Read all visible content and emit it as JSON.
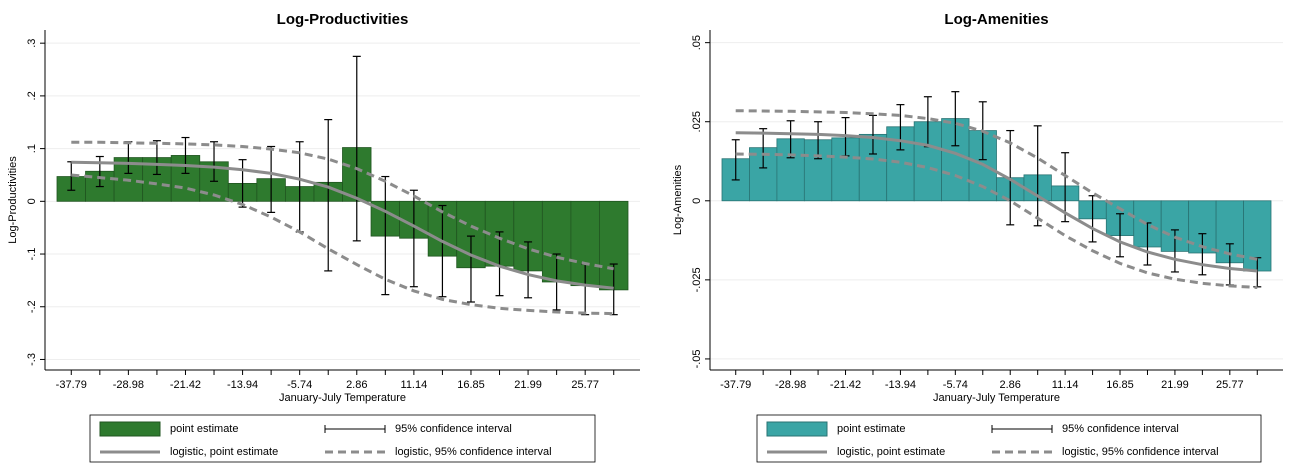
{
  "chart_data": [
    {
      "type": "bar",
      "title": "Log-Productivities",
      "y_label": "Log-Productivities",
      "x_label": "January-July Temperature",
      "categories": [
        "-37.79",
        null,
        "-28.98",
        null,
        "-21.42",
        null,
        "-13.94",
        null,
        "-5.74",
        null,
        "2.86",
        null,
        "11.14",
        null,
        "16.85",
        null,
        "21.99",
        null,
        "25.77",
        null
      ],
      "ylim": [
        -0.32,
        0.325
      ],
      "yticks": [
        {
          "value": -0.3,
          "label": "-.3"
        },
        {
          "value": -0.2,
          "label": "-.2"
        },
        {
          "value": -0.1,
          "label": "-.1"
        },
        0,
        {
          "value": 0.1,
          "label": ".1"
        },
        {
          "value": 0.2,
          "label": ".2"
        },
        {
          "value": 0.3,
          "label": ".3"
        }
      ],
      "grid": true,
      "series": [
        {
          "name": "point estimate",
          "color": "#2e7a2e",
          "values": [
            0.047,
            0.057,
            0.083,
            0.083,
            0.087,
            0.075,
            0.034,
            0.043,
            0.028,
            0.036,
            0.102,
            -0.066,
            -0.07,
            -0.104,
            -0.126,
            -0.123,
            -0.132,
            -0.153,
            -0.16,
            -0.168
          ]
        },
        {
          "name": "95% confidence interval",
          "color": "#000000",
          "low": [
            0.021,
            0.028,
            0.053,
            0.051,
            0.053,
            0.038,
            -0.011,
            -0.021,
            -0.058,
            -0.132,
            -0.075,
            -0.177,
            -0.162,
            -0.181,
            -0.191,
            -0.179,
            -0.183,
            -0.206,
            -0.215,
            -0.215
          ],
          "high": [
            0.075,
            0.085,
            0.113,
            0.115,
            0.121,
            0.113,
            0.079,
            0.104,
            0.113,
            0.155,
            0.275,
            0.047,
            0.021,
            -0.008,
            -0.066,
            -0.058,
            -0.077,
            -0.1,
            -0.119,
            -0.119
          ]
        },
        {
          "name": "logistic, point estimate",
          "color": "#8c8c8c",
          "values": [
            0.074,
            0.073,
            0.072,
            0.07,
            0.068,
            0.065,
            0.06,
            0.053,
            0.042,
            0.027,
            0.006,
            -0.019,
            -0.047,
            -0.076,
            -0.102,
            -0.123,
            -0.139,
            -0.151,
            -0.159,
            -0.165
          ]
        },
        {
          "name": "logistic, 95% confidence interval",
          "color": "#8c8c8c",
          "dashed": true,
          "upper": [
            0.112,
            0.112,
            0.111,
            0.11,
            0.109,
            0.107,
            0.104,
            0.099,
            0.092,
            0.08,
            0.062,
            0.038,
            0.01,
            -0.02,
            -0.047,
            -0.07,
            -0.09,
            -0.106,
            -0.118,
            -0.128
          ],
          "lower": [
            0.05,
            0.045,
            0.04,
            0.033,
            0.025,
            0.012,
            -0.006,
            -0.03,
            -0.058,
            -0.09,
            -0.12,
            -0.148,
            -0.17,
            -0.186,
            -0.196,
            -0.203,
            -0.207,
            -0.21,
            -0.212,
            -0.213
          ]
        }
      ]
    },
    {
      "type": "bar",
      "title": "Log-Amenities",
      "y_label": "Log-Amenities",
      "x_label": "January-July Temperature",
      "categories": [
        "-37.79",
        null,
        "-28.98",
        null,
        "-21.42",
        null,
        "-13.94",
        null,
        "-5.74",
        null,
        "2.86",
        null,
        "11.14",
        null,
        "16.85",
        null,
        "21.99",
        null,
        "25.77",
        null
      ],
      "ylim": [
        -0.0535,
        0.054
      ],
      "yticks": [
        {
          "value": -0.05,
          "label": "-.05"
        },
        {
          "value": -0.025,
          "label": "-.025"
        },
        0,
        {
          "value": 0.025,
          "label": ".025"
        },
        {
          "value": 0.05,
          "label": ".05"
        }
      ],
      "grid": true,
      "series": [
        {
          "name": "point estimate",
          "color": "#3aa5a5",
          "values": [
            0.0133,
            0.0168,
            0.0196,
            0.0193,
            0.0199,
            0.021,
            0.0234,
            0.025,
            0.026,
            0.0222,
            0.0073,
            0.0082,
            0.0047,
            -0.0057,
            -0.011,
            -0.0146,
            -0.016,
            -0.0165,
            -0.0196,
            -0.0222
          ]
        },
        {
          "name": "95% confidence interval",
          "color": "#000000",
          "low": [
            0.0066,
            0.0104,
            0.0136,
            0.0133,
            0.0142,
            0.0148,
            0.0161,
            0.0171,
            0.0174,
            0.013,
            -0.0076,
            -0.0079,
            -0.0066,
            -0.013,
            -0.0177,
            -0.0203,
            -0.0225,
            -0.0234,
            -0.0266,
            -0.0272
          ],
          "high": [
            0.0193,
            0.0228,
            0.0253,
            0.025,
            0.0263,
            0.027,
            0.0304,
            0.0329,
            0.0345,
            0.0313,
            0.0222,
            0.0237,
            0.0152,
            0.0016,
            -0.0041,
            -0.007,
            -0.0092,
            -0.0104,
            -0.0136,
            -0.018
          ]
        },
        {
          "name": "logistic, point estimate",
          "color": "#8c8c8c",
          "values": [
            0.0215,
            0.0214,
            0.0212,
            0.021,
            0.0206,
            0.02,
            0.019,
            0.0175,
            0.015,
            0.0115,
            0.0068,
            0.0015,
            -0.0038,
            -0.0088,
            -0.013,
            -0.0162,
            -0.0185,
            -0.0202,
            -0.0214,
            -0.0222
          ]
        },
        {
          "name": "logistic, 95% confidence interval",
          "color": "#8c8c8c",
          "dashed": true,
          "upper": [
            0.0285,
            0.0284,
            0.0283,
            0.0281,
            0.0279,
            0.0275,
            0.027,
            0.026,
            0.0245,
            0.022,
            0.0183,
            0.0135,
            0.008,
            0.0025,
            -0.0025,
            -0.0075,
            -0.0115,
            -0.0145,
            -0.0168,
            -0.0185
          ],
          "lower": [
            0.0148,
            0.0147,
            0.0145,
            0.0142,
            0.0138,
            0.0132,
            0.0122,
            0.0105,
            0.008,
            0.0045,
            0.0,
            -0.0055,
            -0.011,
            -0.0158,
            -0.0198,
            -0.0228,
            -0.0248,
            -0.0261,
            -0.0269,
            -0.0274
          ]
        }
      ]
    }
  ]
}
